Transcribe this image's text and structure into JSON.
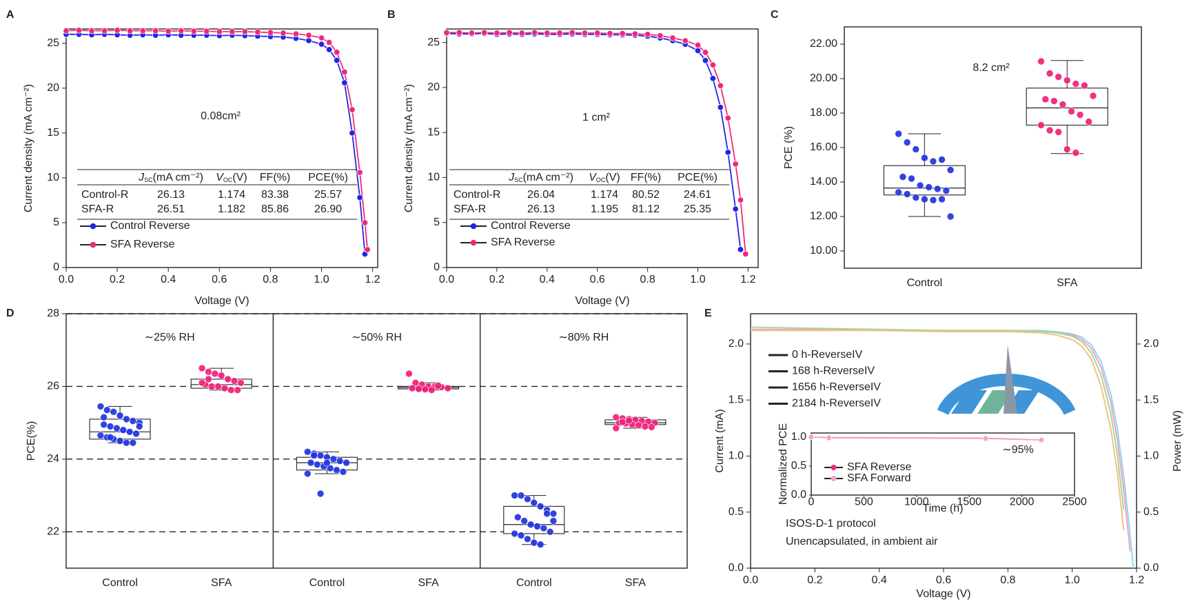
{
  "chart_data": [
    {
      "panel": "A",
      "type": "line",
      "xlabel": "Voltage (V)",
      "ylabel": "Current density (mA cm⁻²)",
      "annotation": "0.08cm²",
      "xlim": [
        0,
        1.22
      ],
      "xticks": [
        {
          "value": 0,
          "label": "0.0"
        },
        {
          "value": 0.2,
          "label": "0.2"
        },
        {
          "value": 0.4,
          "label": "0.4"
        },
        {
          "value": 0.6,
          "label": "0.6"
        },
        {
          "value": 0.8,
          "label": "0.8"
        },
        {
          "value": 1.0,
          "label": "1.0"
        },
        {
          "value": 1.2,
          "label": "1.2"
        }
      ],
      "ylim": [
        0,
        26.6
      ],
      "yticks": [
        0,
        5,
        10,
        15,
        20,
        25
      ],
      "legend": "lower left",
      "x": [
        0,
        0.05,
        0.1,
        0.15,
        0.2,
        0.25,
        0.3,
        0.35,
        0.4,
        0.45,
        0.5,
        0.55,
        0.6,
        0.65,
        0.7,
        0.75,
        0.8,
        0.85,
        0.9,
        0.95,
        1.0,
        1.03,
        1.06,
        1.09,
        1.12,
        1.15,
        1.17,
        1.18
      ],
      "series": [
        {
          "name": "Control Reverse",
          "color": "#2424e6",
          "values": [
            26.0,
            26.0,
            25.95,
            26.0,
            25.95,
            25.9,
            25.95,
            25.9,
            25.95,
            25.9,
            25.9,
            25.9,
            25.85,
            25.9,
            25.85,
            25.8,
            25.75,
            25.7,
            25.55,
            25.3,
            24.9,
            24.3,
            23.1,
            20.6,
            15.0,
            7.8,
            1.5,
            null
          ]
        },
        {
          "name": "SFA Reverse",
          "color": "#f0287a",
          "values": [
            26.4,
            26.45,
            26.4,
            26.4,
            26.45,
            26.4,
            26.4,
            26.4,
            26.35,
            26.4,
            26.35,
            26.35,
            26.3,
            26.3,
            26.3,
            26.25,
            26.2,
            26.15,
            26.05,
            25.9,
            25.6,
            25.1,
            24.0,
            21.8,
            17.6,
            10.6,
            5.0,
            2.0
          ]
        }
      ],
      "table": {
        "header": [
          {
            "base": "J",
            "sub": "SC",
            "unit": "(mA cm⁻²)"
          },
          {
            "base": "V",
            "sub": "OC",
            "unit": "(V)"
          },
          "FF(%)",
          "PCE(%)"
        ],
        "rows": [
          [
            "Control-R",
            "26.13",
            "1.174",
            "83.38",
            "25.57"
          ],
          [
            "SFA-R",
            "26.51",
            "1.182",
            "85.86",
            "26.90"
          ]
        ]
      }
    },
    {
      "panel": "B",
      "type": "line",
      "xlabel": "Voltage (V)",
      "ylabel": "Current density (mA cm⁻²)",
      "annotation": "1 cm²",
      "xlim": [
        0,
        1.24
      ],
      "xticks": [
        {
          "value": 0,
          "label": "0.0"
        },
        {
          "value": 0.2,
          "label": "0.2"
        },
        {
          "value": 0.4,
          "label": "0.4"
        },
        {
          "value": 0.6,
          "label": "0.6"
        },
        {
          "value": 0.8,
          "label": "0.8"
        },
        {
          "value": 1.0,
          "label": "1.0"
        },
        {
          "value": 1.2,
          "label": "1.2"
        }
      ],
      "ylim": [
        0,
        26.5
      ],
      "yticks": [
        0,
        5,
        10,
        15,
        20,
        25
      ],
      "legend": "lower left",
      "x": [
        0,
        0.05,
        0.1,
        0.15,
        0.2,
        0.25,
        0.3,
        0.35,
        0.4,
        0.45,
        0.5,
        0.55,
        0.6,
        0.65,
        0.7,
        0.75,
        0.8,
        0.85,
        0.9,
        0.95,
        1.0,
        1.03,
        1.06,
        1.09,
        1.12,
        1.15,
        1.17,
        1.19
      ],
      "series": [
        {
          "name": "Control Reverse",
          "color": "#2424e6",
          "values": [
            26.0,
            25.95,
            25.95,
            26.0,
            25.9,
            25.95,
            25.9,
            25.95,
            25.9,
            25.9,
            25.95,
            25.9,
            25.9,
            25.85,
            25.85,
            25.8,
            25.7,
            25.5,
            25.2,
            24.8,
            24.1,
            23.0,
            21.0,
            17.8,
            12.8,
            6.5,
            2.0,
            null
          ]
        },
        {
          "name": "SFA Reverse",
          "color": "#f0287a",
          "values": [
            26.1,
            26.1,
            26.05,
            26.1,
            26.05,
            26.1,
            26.05,
            26.1,
            26.05,
            26.05,
            26.1,
            26.05,
            26.05,
            26.0,
            26.0,
            25.95,
            25.9,
            25.75,
            25.5,
            25.2,
            24.7,
            23.9,
            22.5,
            20.2,
            16.6,
            11.5,
            7.5,
            1.5
          ]
        }
      ],
      "table": {
        "header": [
          {
            "base": "J",
            "sub": "SC",
            "unit": "(mA cm⁻²)"
          },
          {
            "base": "V",
            "sub": "OC",
            "unit": "(V)"
          },
          "FF(%)",
          "PCE(%)"
        ],
        "rows": [
          [
            "Control-R",
            "26.04",
            "1.174",
            "80.52",
            "24.61"
          ],
          [
            "SFA-R",
            "26.13",
            "1.195",
            "81.12",
            "25.35"
          ]
        ]
      }
    },
    {
      "panel": "C",
      "type": "box",
      "ylabel": "PCE  (%)",
      "annotation": "8.2 cm²",
      "ylim": [
        9,
        23
      ],
      "yticks": [
        {
          "value": 10,
          "label": "10.00"
        },
        {
          "value": 12,
          "label": "12.00"
        },
        {
          "value": 14,
          "label": "14.00"
        },
        {
          "value": 16,
          "label": "16.00"
        },
        {
          "value": 18,
          "label": "18.00"
        },
        {
          "value": 20,
          "label": "20.00"
        },
        {
          "value": 22,
          "label": "22.00"
        }
      ],
      "groups": [
        {
          "name": "Control",
          "color": "#1f33e0",
          "box": {
            "whisker_low": 12.0,
            "q1": 13.25,
            "median": 13.65,
            "q3": 14.95,
            "whisker_high": 16.8
          },
          "points": [
            16.8,
            16.3,
            15.9,
            15.4,
            15.2,
            15.3,
            14.7,
            14.3,
            14.2,
            13.8,
            13.7,
            13.6,
            13.5,
            13.4,
            13.3,
            13.1,
            13.0,
            12.95,
            13.0,
            12.0
          ]
        },
        {
          "name": "SFA",
          "color": "#f0207a",
          "box": {
            "whisker_low": 15.65,
            "q1": 17.3,
            "median": 18.3,
            "q3": 19.45,
            "whisker_high": 21.05
          },
          "points": [
            21.0,
            20.3,
            20.1,
            19.9,
            19.7,
            19.6,
            19.0,
            18.8,
            18.7,
            18.5,
            18.1,
            17.9,
            17.5,
            17.3,
            17.0,
            16.9,
            15.9,
            15.7
          ]
        }
      ]
    },
    {
      "panel": "D",
      "type": "box",
      "ylabel": "PCE(%)",
      "ylim": [
        21,
        28
      ],
      "yticks": [
        22,
        24,
        26,
        28
      ],
      "grid": true,
      "panels": [
        {
          "label": "∼25% RH",
          "groups": [
            {
              "name": "Control",
              "color": "#1f33e0",
              "box": {
                "whisker_low": 24.45,
                "q1": 24.55,
                "median": 24.75,
                "q3": 25.1,
                "whisker_high": 25.45
              },
              "points": [
                25.45,
                25.35,
                25.3,
                25.2,
                25.1,
                25.05,
                25.0,
                24.95,
                24.9,
                24.85,
                24.8,
                24.75,
                24.7,
                24.65,
                24.6,
                24.55,
                24.5,
                24.45,
                24.45,
                24.9,
                25.15,
                24.6
              ]
            },
            {
              "name": "SFA",
              "color": "#f0207a",
              "box": {
                "whisker_low": 25.9,
                "q1": 25.95,
                "median": 26.05,
                "q3": 26.2,
                "whisker_high": 26.5
              },
              "points": [
                26.5,
                26.4,
                26.35,
                26.3,
                26.2,
                26.15,
                26.1,
                26.05,
                26.0,
                26.0,
                25.95,
                25.9,
                25.9,
                26.1,
                26.2
              ]
            }
          ]
        },
        {
          "label": "∼50% RH",
          "groups": [
            {
              "name": "Control",
              "color": "#1f33e0",
              "box": {
                "whisker_low": 23.6,
                "q1": 23.7,
                "median": 23.9,
                "q3": 24.05,
                "whisker_high": 24.2
              },
              "points": [
                24.2,
                24.15,
                24.1,
                24.05,
                24.0,
                23.95,
                23.9,
                23.9,
                23.85,
                23.8,
                23.75,
                23.7,
                23.65,
                23.6,
                24.1,
                23.05,
                23.9
              ]
            },
            {
              "name": "SFA",
              "color": "#f0207a",
              "box": {
                "whisker_low": 25.9,
                "q1": 25.93,
                "median": 25.97,
                "q3": 26.0,
                "whisker_high": 26.1
              },
              "points": [
                26.35,
                26.1,
                26.05,
                26.0,
                26.0,
                25.98,
                25.95,
                25.95,
                25.93,
                25.92,
                25.9,
                26.02
              ]
            }
          ]
        },
        {
          "label": "∼80% RH",
          "groups": [
            {
              "name": "Control",
              "color": "#1f33e0",
              "box": {
                "whisker_low": 21.65,
                "q1": 21.95,
                "median": 22.2,
                "q3": 22.7,
                "whisker_high": 23.0
              },
              "points": [
                23.0,
                23.0,
                22.9,
                22.8,
                22.7,
                22.6,
                22.5,
                22.4,
                22.3,
                22.2,
                22.15,
                22.1,
                22.0,
                21.95,
                21.9,
                21.8,
                21.7,
                21.65,
                22.5,
                22.3
              ]
            },
            {
              "name": "SFA",
              "color": "#f0207a",
              "box": {
                "whisker_low": 24.85,
                "q1": 24.95,
                "median": 25.0,
                "q3": 25.08,
                "whisker_high": 25.15
              },
              "points": [
                25.15,
                25.12,
                25.1,
                25.08,
                25.05,
                25.03,
                25.0,
                25.0,
                24.98,
                24.95,
                24.93,
                24.9,
                24.88,
                24.85,
                25.02,
                25.06
              ]
            }
          ]
        }
      ]
    },
    {
      "panel": "E",
      "type": "line",
      "xlabel": "Voltage (V)",
      "ylabel": "Current (mA)",
      "y2label": "Power (mW)",
      "legend": "upper left",
      "xlim": [
        0,
        1.2
      ],
      "xticks": [
        {
          "value": 0,
          "label": "0.0"
        },
        {
          "value": 0.2,
          "label": "0.2"
        },
        {
          "value": 0.4,
          "label": "0.4"
        },
        {
          "value": 0.6,
          "label": "0.6"
        },
        {
          "value": 0.8,
          "label": "0.8"
        },
        {
          "value": 1.0,
          "label": "1.0"
        },
        {
          "value": 1.2,
          "label": "1.2"
        }
      ],
      "ylim": [
        0,
        2.27
      ],
      "yticks": [
        {
          "value": 0,
          "label": "0.0"
        },
        {
          "value": 0.5,
          "label": "0.5"
        },
        {
          "value": 1.0,
          "label": "1.0"
        },
        {
          "value": 1.5,
          "label": "1.5"
        },
        {
          "value": 2.0,
          "label": "2.0"
        }
      ],
      "y2lim": [
        0,
        2.27
      ],
      "y2ticks": [
        {
          "value": 0,
          "label": "0.0"
        },
        {
          "value": 0.5,
          "label": "0.5"
        },
        {
          "value": 1.0,
          "label": "1.0"
        },
        {
          "value": 1.5,
          "label": "1.5"
        },
        {
          "value": 2.0,
          "label": "2.0"
        }
      ],
      "x": [
        0,
        0.2,
        0.4,
        0.6,
        0.8,
        0.9,
        0.95,
        1.0,
        1.03,
        1.06,
        1.09,
        1.12,
        1.14,
        1.16,
        1.18,
        1.19
      ],
      "series": [
        {
          "name": "0 h-ReverseIV",
          "color": "#8fd4f0",
          "values": [
            2.13,
            2.13,
            2.13,
            2.12,
            2.12,
            2.12,
            2.11,
            2.09,
            2.06,
            1.99,
            1.84,
            1.55,
            1.25,
            0.82,
            0.3,
            0.0
          ]
        },
        {
          "name": "168 h-ReverseIV",
          "color": "#f0a2c4",
          "values": [
            2.13,
            2.13,
            2.12,
            2.12,
            2.12,
            2.11,
            2.1,
            2.08,
            2.04,
            1.96,
            1.79,
            1.48,
            1.15,
            0.7,
            0.15,
            null
          ]
        },
        {
          "name": "1656 h-ReverseIV",
          "color": "#a6d892",
          "values": [
            2.15,
            2.14,
            2.13,
            2.12,
            2.12,
            2.11,
            2.1,
            2.07,
            2.02,
            1.92,
            1.72,
            1.38,
            1.02,
            0.52,
            null,
            null
          ]
        },
        {
          "name": "2184 h-ReverseIV",
          "color": "#f4c184",
          "values": [
            2.12,
            2.12,
            2.12,
            2.11,
            2.11,
            2.1,
            2.08,
            2.04,
            1.98,
            1.86,
            1.62,
            1.24,
            0.86,
            0.34,
            null,
            null
          ]
        }
      ],
      "notes": [
        "ISOS-D-1 protocol",
        "Unencapsulated, in ambient air"
      ],
      "inset": {
        "type": "line",
        "xlabel": "Time (h)",
        "ylabel": "Normalized PCE",
        "annotation": "∼95%",
        "legend": "lower left",
        "xlim": [
          0,
          2500
        ],
        "xticks": [
          0,
          500,
          1000,
          1500,
          2000,
          2500
        ],
        "ylim": [
          0,
          1.07
        ],
        "yticks": [
          {
            "value": 0,
            "label": "0.0"
          },
          {
            "value": 0.5,
            "label": "0.5"
          },
          {
            "value": 1.0,
            "label": "1.0"
          }
        ],
        "x": [
          0,
          168,
          1656,
          2184
        ],
        "series": [
          {
            "name": "SFA Reverse",
            "color": "#f0287a",
            "values": [
              1.0,
              0.99,
              0.98,
              0.95
            ]
          },
          {
            "name": "SFA Forward",
            "color": "#f7a2cc",
            "values": [
              1.0,
              0.985,
              0.975,
              0.95
            ]
          }
        ]
      }
    }
  ]
}
